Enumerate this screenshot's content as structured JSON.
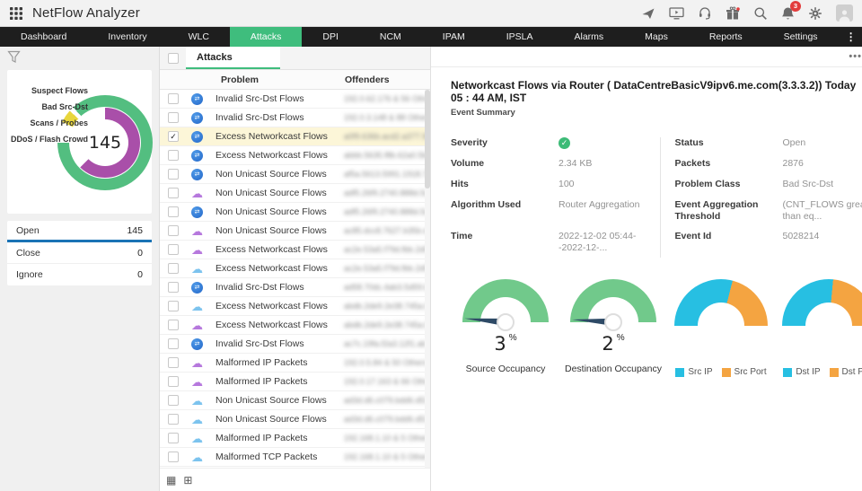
{
  "app": {
    "title": "NetFlow Analyzer"
  },
  "header": {
    "icons": [
      "promo-icon",
      "demo-screen-icon",
      "support-headset-icon",
      "whats-new-gift-icon",
      "search-icon",
      "notifications-bell-icon",
      "settings-gear-icon",
      "user-avatar"
    ],
    "notification_count": "3"
  },
  "nav": {
    "items": [
      {
        "label": "Dashboard",
        "active": false
      },
      {
        "label": "Inventory",
        "active": false
      },
      {
        "label": "WLC",
        "active": false
      },
      {
        "label": "Attacks",
        "active": true
      },
      {
        "label": "DPI",
        "active": false
      },
      {
        "label": "NCM",
        "active": false
      },
      {
        "label": "IPAM",
        "active": false
      },
      {
        "label": "IPSLA",
        "active": false
      },
      {
        "label": "Alarms",
        "active": false
      },
      {
        "label": "Maps",
        "active": false
      },
      {
        "label": "Reports",
        "active": false
      },
      {
        "label": "Settings",
        "active": false
      }
    ],
    "overflow_icon": "⋮"
  },
  "sidebar": {
    "total": "145",
    "legend": [
      "Suspect Flows",
      "Bad Src-Dst",
      "Scans / Probes",
      "DDoS / Flash Crowd"
    ],
    "status_rows": [
      {
        "label": "Open",
        "value": "145",
        "active": true
      },
      {
        "label": "Close",
        "value": "0",
        "active": false
      },
      {
        "label": "Ignore",
        "value": "0",
        "active": false
      }
    ]
  },
  "table": {
    "tab": "Attacks",
    "columns": [
      "Problem",
      "Offenders"
    ],
    "rows": [
      {
        "icon": "router",
        "problem": "Invalid Src-Dst Flows",
        "offenders": "192.0.62.176 & 56 Others",
        "selected": false
      },
      {
        "icon": "router",
        "problem": "Invalid Src-Dst Flows",
        "offenders": "192.0.3.148 & 88 Others",
        "selected": false
      },
      {
        "icon": "router",
        "problem": "Excess Networkcast Flows",
        "offenders": "a0f9.636b.acd2.a377.9b...",
        "selected": true
      },
      {
        "icon": "router",
        "problem": "Excess Networkcast Flows",
        "offenders": "abbb.5635.f8b.62a0.5bc...",
        "selected": false
      },
      {
        "icon": "router",
        "problem": "Non Unicast Source Flows",
        "offenders": "af5a.5613.5991.1918.7...",
        "selected": false
      },
      {
        "icon": "cloud-purple",
        "problem": "Non Unicast Source Flows",
        "offenders": "adf5.26f9.2740.888d.5c...",
        "selected": false
      },
      {
        "icon": "router",
        "problem": "Non Unicast Source Flows",
        "offenders": "adf5.26f9.2740.888d.5c...",
        "selected": false
      },
      {
        "icon": "cloud-purple",
        "problem": "Non Unicast Source Flows",
        "offenders": "ac85.dcc8.7627.b35b.d8...",
        "selected": false
      },
      {
        "icon": "cloud-purple",
        "problem": "Excess Networkcast Flows",
        "offenders": "ac2e.53a5.f79d.fbb.2d5...",
        "selected": false
      },
      {
        "icon": "cloud-blue",
        "problem": "Excess Networkcast Flows",
        "offenders": "ac2e.53a5.f79d.fbb.2d5...",
        "selected": false
      },
      {
        "icon": "router",
        "problem": "Invalid Src-Dst Flows",
        "offenders": "ad58.70dc.4ab3.5d59.b...",
        "selected": false
      },
      {
        "icon": "cloud-blue",
        "problem": "Excess Networkcast Flows",
        "offenders": "abdb.2de9.2e38.745a.b...",
        "selected": false
      },
      {
        "icon": "cloud-purple",
        "problem": "Excess Networkcast Flows",
        "offenders": "abdb.2de9.2e38.745a.b...",
        "selected": false
      },
      {
        "icon": "router",
        "problem": "Invalid Src-Dst Flows",
        "offenders": "ac7c.19fa.f2a3.12f1.ab...",
        "selected": false
      },
      {
        "icon": "cloud-purple",
        "problem": "Malformed IP Packets",
        "offenders": "192.0.5.84 & 50 Others",
        "selected": false
      },
      {
        "icon": "cloud-purple",
        "problem": "Malformed IP Packets",
        "offenders": "192.0.17.163 & 66 Others",
        "selected": false
      },
      {
        "icon": "cloud-blue",
        "problem": "Non Unicast Source Flows",
        "offenders": "ad3d.d6.c079.bdd6.d53b...",
        "selected": false
      },
      {
        "icon": "cloud-blue",
        "problem": "Non Unicast Source Flows",
        "offenders": "ad3d.d6.c079.bdd6.d53b...",
        "selected": false
      },
      {
        "icon": "cloud-blue",
        "problem": "Malformed IP Packets",
        "offenders": "192.168.1.10 & 5 Others",
        "selected": false
      },
      {
        "icon": "cloud-blue",
        "problem": "Malformed TCP Packets",
        "offenders": "192.168.1.10 & 5 Others",
        "selected": false
      }
    ]
  },
  "detail": {
    "menu_dots": "•••",
    "close_label": "✕",
    "title": "Networkcast Flows via Router ( DataCentreBasicV9ipv6.me.com(3.3.3.2)) Today 05 : 44 AM, IST",
    "subtitle": "Event Summary",
    "fields_left": [
      {
        "label": "Severity",
        "value": "",
        "icon": "check"
      },
      {
        "label": "Volume",
        "value": "2.34 KB"
      },
      {
        "label": "Hits",
        "value": "100"
      },
      {
        "label": "Algorithm Used",
        "value": "Router Aggregation",
        "tall": true
      },
      {
        "label": "Time",
        "value": "2022-12-02 05:44--2022-12-..."
      }
    ],
    "fields_right": [
      {
        "label": "Status",
        "value": "Open"
      },
      {
        "label": "Packets",
        "value": "2876"
      },
      {
        "label": "Problem Class",
        "value": "Bad Src-Dst"
      },
      {
        "label": "Event Aggregation Threshold",
        "value": "(CNT_FLOWS greater than eq...",
        "tall": true
      },
      {
        "label": "Event Id",
        "value": "5028214"
      }
    ]
  },
  "chart_data": [
    {
      "type": "donut",
      "title": "Attack events by category",
      "center_label": "145",
      "legend_position": "left",
      "segments": [
        {
          "label": "Suspect Flows",
          "color": "#53be80",
          "arc_percent": 86
        },
        {
          "label": "Bad Src-Dst",
          "color": "#a94fa9",
          "arc_percent": 62
        },
        {
          "label": "Scans / Probes",
          "color": "#e8d63c",
          "arc_percent": 4
        },
        {
          "label": "DDoS / Flash Crowd",
          "color": "#cccccc",
          "arc_percent": 0
        }
      ],
      "outer_ring_arcs": [
        {
          "color": "#53be80",
          "start": 0,
          "end": 270
        },
        {
          "color": null,
          "start": 270,
          "end": 296
        },
        {
          "color": "#e8d63c",
          "start": 296,
          "end": 312
        },
        {
          "color": null,
          "start": 312,
          "end": 318
        },
        {
          "color": "#53be80",
          "start": 318,
          "end": 360
        }
      ],
      "inner_ring_arcs": [
        {
          "color": "#a94fa9",
          "start": 0,
          "end": 225
        },
        {
          "color": null,
          "start": 225,
          "end": 360
        }
      ]
    },
    {
      "type": "gauge",
      "label": "Source Occupancy",
      "value": 3,
      "unit": "%",
      "min": 0,
      "max": 100,
      "color": "#71c98b"
    },
    {
      "type": "gauge",
      "label": "Destination Occupancy",
      "value": 2,
      "unit": "%",
      "min": 0,
      "max": 100,
      "color": "#71c98b"
    },
    {
      "type": "half-donut",
      "series": [
        {
          "name": "Src IP",
          "value": 58,
          "color": "#27bfe2"
        },
        {
          "name": "Src Port",
          "value": 42,
          "color": "#f4a441"
        }
      ]
    },
    {
      "type": "half-donut",
      "series": [
        {
          "name": "Dst IP",
          "value": 53,
          "color": "#27bfe2"
        },
        {
          "name": "Dst Port",
          "value": 47,
          "color": "#f4a441"
        }
      ]
    }
  ]
}
